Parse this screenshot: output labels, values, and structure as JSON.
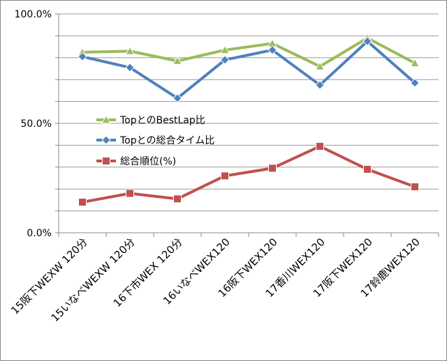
{
  "chart_data": {
    "type": "line",
    "title": "",
    "xlabel": "",
    "ylabel": "",
    "ylim": [
      0,
      100
    ],
    "y_ticks": [
      "100.0%",
      "50.0%",
      "0.0%"
    ],
    "grid": true,
    "legend_position": "center-left",
    "categories": [
      "15阪下WEXW 120分",
      "15いなべWEXW 120分",
      "16下市WEX 120分",
      "16いなべWEX120",
      "16阪下WEX120",
      "17香川WEX120",
      "17阪下WEX120",
      "17鈴鹿WEX120"
    ],
    "series": [
      {
        "name": "TopとのBestLap比",
        "color": "#9bbb59",
        "marker": "triangle",
        "values": [
          82.5,
          83.0,
          78.5,
          83.5,
          86.5,
          76.0,
          89.0,
          77.5
        ]
      },
      {
        "name": "Topとの総合タイム比",
        "color": "#4f81bd",
        "marker": "diamond",
        "values": [
          80.5,
          75.5,
          61.5,
          79.0,
          83.5,
          67.5,
          87.5,
          68.5
        ]
      },
      {
        "name": "総合順位(%)",
        "color": "#c0504d",
        "marker": "square",
        "values": [
          14.0,
          18.0,
          15.5,
          26.0,
          29.5,
          39.5,
          29.0,
          21.0
        ]
      }
    ]
  }
}
